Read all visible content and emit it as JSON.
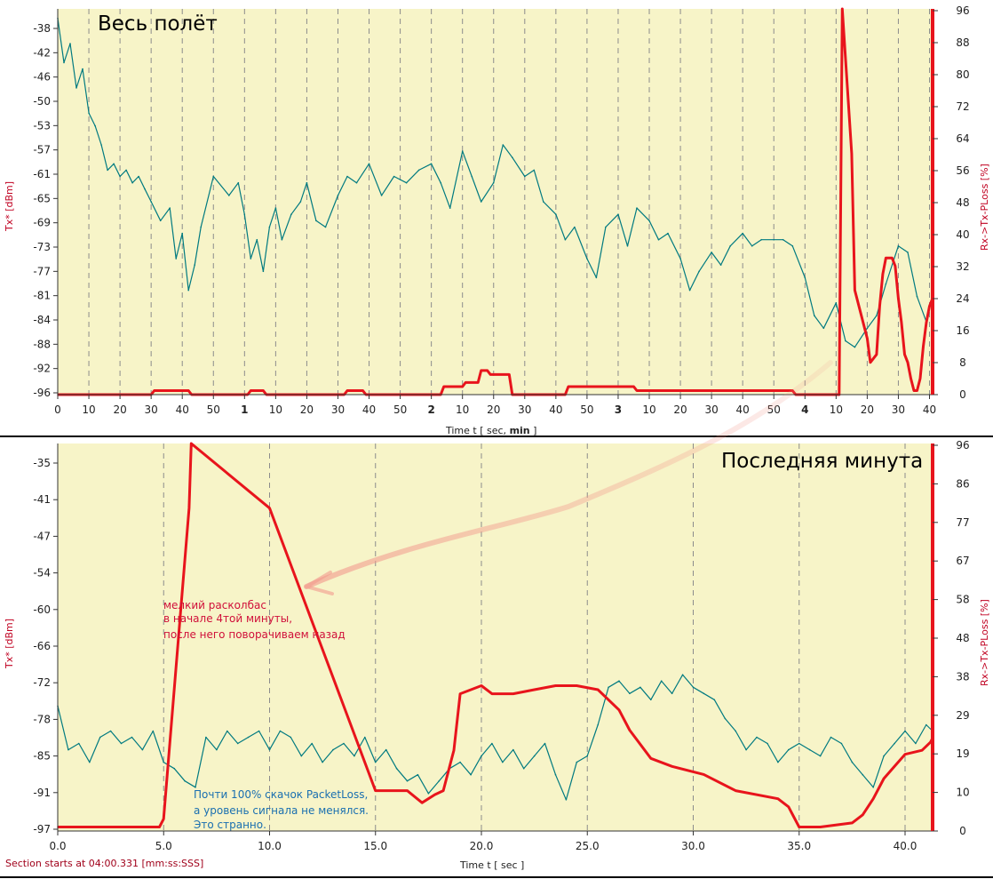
{
  "chart_data": [
    {
      "id": "top",
      "type": "line",
      "title": "Весь полёт",
      "xlabel_parts": [
        "Time  t  [ sec, ",
        "min",
        " ]"
      ],
      "ylabel_left": "Tx*  [dBm]",
      "ylabel_right": "Rx->Tx-PLoss  [%]",
      "x_ticks": [
        "0",
        "10",
        "20",
        "30",
        "40",
        "50",
        "1",
        "10",
        "20",
        "30",
        "40",
        "50",
        "2",
        "10",
        "20",
        "30",
        "40",
        "50",
        "3",
        "10",
        "20",
        "30",
        "40",
        "50",
        "4",
        "10",
        "20",
        "30",
        "40"
      ],
      "x_tick_bold": [
        "1",
        "2",
        "3",
        "4"
      ],
      "left_ticks": [
        "-38",
        "-42",
        "-46",
        "-50",
        "-53",
        "-57",
        "-61",
        "-65",
        "-69",
        "-73",
        "-77",
        "-81",
        "-84",
        "-88",
        "-92",
        "-96"
      ],
      "right_ticks": [
        "96",
        "88",
        "80",
        "72",
        "64",
        "56",
        "48",
        "40",
        "32",
        "24",
        "16",
        "8",
        "0"
      ],
      "xlim_sec": [
        0,
        281
      ],
      "ylim_left": [
        -96.5,
        -35.5
      ],
      "ylim_right": [
        0,
        96
      ],
      "grid": "vertical dashed",
      "series": [
        {
          "axis": "left",
          "color": "#007a80",
          "x": [
            0,
            2,
            4,
            6,
            8,
            10,
            12,
            14,
            16,
            18,
            20,
            22,
            24,
            26,
            28,
            30,
            33,
            36,
            38,
            40,
            42,
            44,
            46,
            50,
            55,
            58,
            60,
            62,
            64,
            66,
            68,
            70,
            72,
            75,
            78,
            80,
            83,
            86,
            90,
            93,
            96,
            100,
            104,
            108,
            112,
            116,
            120,
            123,
            126,
            130,
            133,
            136,
            140,
            143,
            146,
            150,
            153,
            156,
            160,
            163,
            166,
            170,
            173,
            176,
            180,
            183,
            186,
            190,
            193,
            196,
            200,
            203,
            206,
            210,
            213,
            216,
            220,
            223,
            226,
            230,
            233,
            236,
            240,
            243,
            246,
            250,
            253,
            256,
            260,
            263,
            266,
            270,
            273,
            276,
            279
          ],
          "y": [
            -37,
            -44,
            -41,
            -48,
            -45,
            -52,
            -54,
            -57,
            -61,
            -60,
            -62,
            -61,
            -63,
            -62,
            -64,
            -66,
            -69,
            -67,
            -75,
            -71,
            -80,
            -76,
            -70,
            -62,
            -65,
            -63,
            -68,
            -75,
            -72,
            -77,
            -70,
            -67,
            -72,
            -68,
            -66,
            -63,
            -69,
            -70,
            -65,
            -62,
            -63,
            -60,
            -65,
            -62,
            -63,
            -61,
            -60,
            -63,
            -67,
            -58,
            -62,
            -66,
            -63,
            -57,
            -59,
            -62,
            -61,
            -66,
            -68,
            -72,
            -70,
            -75,
            -78,
            -70,
            -68,
            -73,
            -67,
            -69,
            -72,
            -71,
            -75,
            -80,
            -77,
            -74,
            -76,
            -73,
            -71,
            -73,
            -72,
            -72,
            -72,
            -73,
            -78,
            -84,
            -86,
            -82,
            -88,
            -89,
            -86,
            -84,
            -79,
            -73,
            -74,
            -81,
            -85
          ]
        },
        {
          "axis": "right",
          "color": "#e8141c",
          "x": [
            0,
            30,
            31,
            42,
            43,
            61,
            62,
            66,
            67,
            92,
            93,
            98,
            99,
            123,
            124,
            130,
            131,
            135,
            136,
            138,
            139,
            145,
            146,
            163,
            164,
            185,
            186,
            236,
            237,
            251,
            252,
            255,
            256,
            260,
            261,
            263,
            264,
            265,
            266,
            268,
            269,
            270,
            271,
            272,
            273,
            274,
            275,
            276,
            277,
            278,
            279,
            280,
            281
          ],
          "y": [
            0,
            0,
            1,
            1,
            0,
            0,
            1,
            1,
            0,
            0,
            1,
            1,
            0,
            0,
            2,
            2,
            3,
            3,
            6,
            6,
            5,
            5,
            0,
            0,
            2,
            2,
            1,
            1,
            0,
            0,
            96,
            60,
            26,
            14,
            8,
            10,
            22,
            30,
            34,
            34,
            32,
            24,
            18,
            10,
            8,
            4,
            1,
            1,
            4,
            12,
            18,
            22,
            24
          ]
        }
      ],
      "annotations": [
        "Последняя минута"
      ]
    },
    {
      "id": "bottom",
      "type": "line",
      "title": "Последняя минута",
      "xlabel": "Time  t  [ sec ]",
      "ylabel_left": "Tx*  [dBm]",
      "ylabel_right": "Rx->Tx-PLoss  [%]",
      "x_ticks": [
        "0.0",
        "5.0",
        "10.0",
        "15.0",
        "20.0",
        "25.0",
        "30.0",
        "35.0",
        "40.0"
      ],
      "x_tick_values": [
        0,
        5,
        10,
        15,
        20,
        25,
        30,
        35,
        40
      ],
      "left_ticks": [
        "-35",
        "-41",
        "-47",
        "-54",
        "-60",
        "-66",
        "-72",
        "-78",
        "-85",
        "-91",
        "-97"
      ],
      "right_ticks": [
        "96",
        "86",
        "77",
        "67",
        "58",
        "48",
        "38",
        "29",
        "19",
        "10",
        "0"
      ],
      "xlim": [
        0,
        41.3
      ],
      "ylim_left": [
        -97,
        -35
      ],
      "ylim_right": [
        0,
        96
      ],
      "grid": "vertical dashed",
      "series": [
        {
          "axis": "left",
          "color": "#007a80",
          "x": [
            0,
            0.5,
            1,
            1.5,
            2,
            2.5,
            3,
            3.5,
            4,
            4.5,
            5,
            5.5,
            6,
            6.5,
            7,
            7.5,
            8,
            8.5,
            9,
            9.5,
            10,
            10.5,
            11,
            11.5,
            12,
            12.5,
            13,
            13.5,
            14,
            14.5,
            15,
            15.5,
            16,
            16.5,
            17,
            17.5,
            18,
            18.5,
            19,
            19.5,
            20,
            20.5,
            21,
            21.5,
            22,
            22.5,
            23,
            23.5,
            24,
            24.5,
            25,
            25.5,
            26,
            26.5,
            27,
            27.5,
            28,
            28.5,
            29,
            29.5,
            30,
            30.5,
            31,
            31.5,
            32,
            32.5,
            33,
            33.5,
            34,
            34.5,
            35,
            35.5,
            36,
            36.5,
            37,
            37.5,
            38,
            38.5,
            39,
            39.5,
            40,
            40.5,
            41,
            41.3
          ],
          "y": [
            -77,
            -84,
            -83,
            -86,
            -82,
            -81,
            -83,
            -82,
            -84,
            -81,
            -86,
            -87,
            -89,
            -90,
            -82,
            -84,
            -81,
            -83,
            -82,
            -81,
            -84,
            -81,
            -82,
            -85,
            -83,
            -86,
            -84,
            -83,
            -85,
            -82,
            -86,
            -84,
            -87,
            -89,
            -88,
            -91,
            -89,
            -87,
            -86,
            -88,
            -85,
            -83,
            -86,
            -84,
            -87,
            -85,
            -83,
            -88,
            -92,
            -86,
            -85,
            -80,
            -74,
            -73,
            -75,
            -74,
            -76,
            -73,
            -75,
            -72,
            -74,
            -75,
            -76,
            -79,
            -81,
            -84,
            -82,
            -83,
            -86,
            -84,
            -83,
            -84,
            -85,
            -82,
            -83,
            -86,
            -88,
            -90,
            -85,
            -83,
            -81,
            -83,
            -80,
            -81
          ]
        },
        {
          "axis": "right",
          "color": "#e8141c",
          "x": [
            0,
            4.8,
            5.0,
            6.2,
            6.3,
            10.0,
            15.0,
            16.5,
            17.2,
            17.8,
            18.2,
            18.7,
            19.0,
            20.0,
            20.5,
            21.5,
            22.5,
            23.5,
            24.5,
            25.5,
            26.5,
            27.0,
            28.0,
            29.0,
            30.5,
            32.0,
            34.0,
            34.5,
            35.0,
            36.0,
            37.5,
            38.0,
            38.5,
            39.0,
            39.5,
            40.0,
            40.8,
            41.2,
            41.3
          ],
          "y": [
            1,
            1,
            3,
            80,
            96,
            80,
            10,
            10,
            7,
            9,
            10,
            20,
            34,
            36,
            34,
            34,
            35,
            36,
            36,
            35,
            30,
            25,
            18,
            16,
            14,
            10,
            8,
            6,
            1,
            1,
            2,
            4,
            8,
            13,
            16,
            19,
            20,
            22,
            23
          ]
        }
      ],
      "annotations": [
        "мелкий расколбас",
        "в начале 4той минуты,",
        "после него поворачиваем назад",
        "Почти 100% скачок PacketLoss,",
        "а уровень сигнала не менялся.",
        "Это странно."
      ]
    }
  ],
  "notes": {
    "red_lines": [
      "мелкий расколбас",
      "в начале 4той минуты,",
      "после него поворачиваем назад"
    ],
    "blue_lines": [
      "Почти 100% скачок PacketLoss,",
      "а уровень сигнала не менялся.",
      "Это странно."
    ]
  },
  "footer": "Section starts at  04:00.331 [mm:ss:SSS]"
}
